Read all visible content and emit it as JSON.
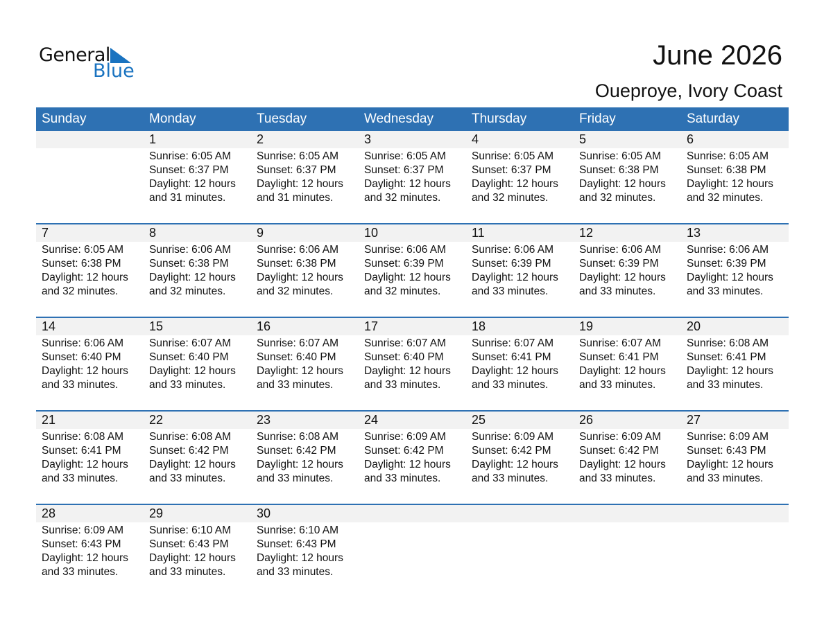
{
  "logo": {
    "word1": "General",
    "word2": "Blue"
  },
  "header": {
    "title": "June 2026",
    "location": "Oueproye, Ivory Coast"
  },
  "colors": {
    "accent": "#2e71b3",
    "band": "#f2f2f2"
  },
  "weekdays": [
    "Sunday",
    "Monday",
    "Tuesday",
    "Wednesday",
    "Thursday",
    "Friday",
    "Saturday"
  ],
  "first_weekday_index": 1,
  "days": [
    {
      "day": "1",
      "sunrise": "Sunrise: 6:05 AM",
      "sunset": "Sunset: 6:37 PM",
      "daylight1": "Daylight: 12 hours",
      "daylight2": "and 31 minutes."
    },
    {
      "day": "2",
      "sunrise": "Sunrise: 6:05 AM",
      "sunset": "Sunset: 6:37 PM",
      "daylight1": "Daylight: 12 hours",
      "daylight2": "and 31 minutes."
    },
    {
      "day": "3",
      "sunrise": "Sunrise: 6:05 AM",
      "sunset": "Sunset: 6:37 PM",
      "daylight1": "Daylight: 12 hours",
      "daylight2": "and 32 minutes."
    },
    {
      "day": "4",
      "sunrise": "Sunrise: 6:05 AM",
      "sunset": "Sunset: 6:37 PM",
      "daylight1": "Daylight: 12 hours",
      "daylight2": "and 32 minutes."
    },
    {
      "day": "5",
      "sunrise": "Sunrise: 6:05 AM",
      "sunset": "Sunset: 6:38 PM",
      "daylight1": "Daylight: 12 hours",
      "daylight2": "and 32 minutes."
    },
    {
      "day": "6",
      "sunrise": "Sunrise: 6:05 AM",
      "sunset": "Sunset: 6:38 PM",
      "daylight1": "Daylight: 12 hours",
      "daylight2": "and 32 minutes."
    },
    {
      "day": "7",
      "sunrise": "Sunrise: 6:05 AM",
      "sunset": "Sunset: 6:38 PM",
      "daylight1": "Daylight: 12 hours",
      "daylight2": "and 32 minutes."
    },
    {
      "day": "8",
      "sunrise": "Sunrise: 6:06 AM",
      "sunset": "Sunset: 6:38 PM",
      "daylight1": "Daylight: 12 hours",
      "daylight2": "and 32 minutes."
    },
    {
      "day": "9",
      "sunrise": "Sunrise: 6:06 AM",
      "sunset": "Sunset: 6:38 PM",
      "daylight1": "Daylight: 12 hours",
      "daylight2": "and 32 minutes."
    },
    {
      "day": "10",
      "sunrise": "Sunrise: 6:06 AM",
      "sunset": "Sunset: 6:39 PM",
      "daylight1": "Daylight: 12 hours",
      "daylight2": "and 32 minutes."
    },
    {
      "day": "11",
      "sunrise": "Sunrise: 6:06 AM",
      "sunset": "Sunset: 6:39 PM",
      "daylight1": "Daylight: 12 hours",
      "daylight2": "and 33 minutes."
    },
    {
      "day": "12",
      "sunrise": "Sunrise: 6:06 AM",
      "sunset": "Sunset: 6:39 PM",
      "daylight1": "Daylight: 12 hours",
      "daylight2": "and 33 minutes."
    },
    {
      "day": "13",
      "sunrise": "Sunrise: 6:06 AM",
      "sunset": "Sunset: 6:39 PM",
      "daylight1": "Daylight: 12 hours",
      "daylight2": "and 33 minutes."
    },
    {
      "day": "14",
      "sunrise": "Sunrise: 6:06 AM",
      "sunset": "Sunset: 6:40 PM",
      "daylight1": "Daylight: 12 hours",
      "daylight2": "and 33 minutes."
    },
    {
      "day": "15",
      "sunrise": "Sunrise: 6:07 AM",
      "sunset": "Sunset: 6:40 PM",
      "daylight1": "Daylight: 12 hours",
      "daylight2": "and 33 minutes."
    },
    {
      "day": "16",
      "sunrise": "Sunrise: 6:07 AM",
      "sunset": "Sunset: 6:40 PM",
      "daylight1": "Daylight: 12 hours",
      "daylight2": "and 33 minutes."
    },
    {
      "day": "17",
      "sunrise": "Sunrise: 6:07 AM",
      "sunset": "Sunset: 6:40 PM",
      "daylight1": "Daylight: 12 hours",
      "daylight2": "and 33 minutes."
    },
    {
      "day": "18",
      "sunrise": "Sunrise: 6:07 AM",
      "sunset": "Sunset: 6:41 PM",
      "daylight1": "Daylight: 12 hours",
      "daylight2": "and 33 minutes."
    },
    {
      "day": "19",
      "sunrise": "Sunrise: 6:07 AM",
      "sunset": "Sunset: 6:41 PM",
      "daylight1": "Daylight: 12 hours",
      "daylight2": "and 33 minutes."
    },
    {
      "day": "20",
      "sunrise": "Sunrise: 6:08 AM",
      "sunset": "Sunset: 6:41 PM",
      "daylight1": "Daylight: 12 hours",
      "daylight2": "and 33 minutes."
    },
    {
      "day": "21",
      "sunrise": "Sunrise: 6:08 AM",
      "sunset": "Sunset: 6:41 PM",
      "daylight1": "Daylight: 12 hours",
      "daylight2": "and 33 minutes."
    },
    {
      "day": "22",
      "sunrise": "Sunrise: 6:08 AM",
      "sunset": "Sunset: 6:42 PM",
      "daylight1": "Daylight: 12 hours",
      "daylight2": "and 33 minutes."
    },
    {
      "day": "23",
      "sunrise": "Sunrise: 6:08 AM",
      "sunset": "Sunset: 6:42 PM",
      "daylight1": "Daylight: 12 hours",
      "daylight2": "and 33 minutes."
    },
    {
      "day": "24",
      "sunrise": "Sunrise: 6:09 AM",
      "sunset": "Sunset: 6:42 PM",
      "daylight1": "Daylight: 12 hours",
      "daylight2": "and 33 minutes."
    },
    {
      "day": "25",
      "sunrise": "Sunrise: 6:09 AM",
      "sunset": "Sunset: 6:42 PM",
      "daylight1": "Daylight: 12 hours",
      "daylight2": "and 33 minutes."
    },
    {
      "day": "26",
      "sunrise": "Sunrise: 6:09 AM",
      "sunset": "Sunset: 6:42 PM",
      "daylight1": "Daylight: 12 hours",
      "daylight2": "and 33 minutes."
    },
    {
      "day": "27",
      "sunrise": "Sunrise: 6:09 AM",
      "sunset": "Sunset: 6:43 PM",
      "daylight1": "Daylight: 12 hours",
      "daylight2": "and 33 minutes."
    },
    {
      "day": "28",
      "sunrise": "Sunrise: 6:09 AM",
      "sunset": "Sunset: 6:43 PM",
      "daylight1": "Daylight: 12 hours",
      "daylight2": "and 33 minutes."
    },
    {
      "day": "29",
      "sunrise": "Sunrise: 6:10 AM",
      "sunset": "Sunset: 6:43 PM",
      "daylight1": "Daylight: 12 hours",
      "daylight2": "and 33 minutes."
    },
    {
      "day": "30",
      "sunrise": "Sunrise: 6:10 AM",
      "sunset": "Sunset: 6:43 PM",
      "daylight1": "Daylight: 12 hours",
      "daylight2": "and 33 minutes."
    }
  ]
}
